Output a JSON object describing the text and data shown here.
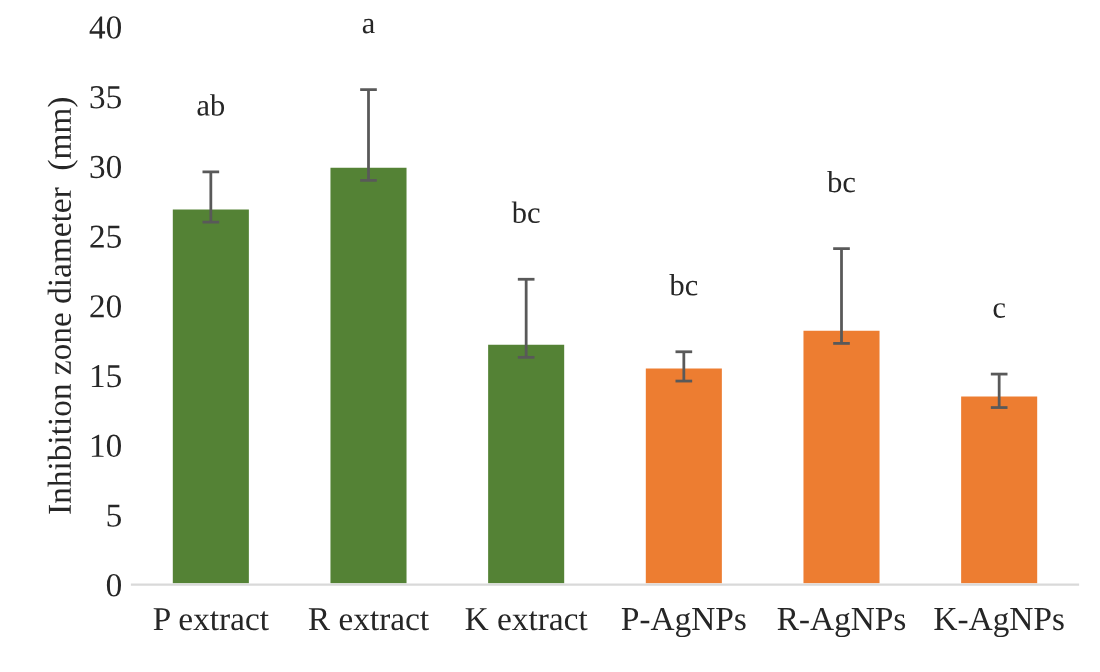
{
  "chart_data": {
    "type": "bar",
    "ylabel": "Inhibition zone diameter  (mm)",
    "categories": [
      "P extract",
      "R extract",
      "K extract",
      "P-AgNPs",
      "R-AgNPs",
      "K-AgNPs"
    ],
    "values": [
      27,
      30,
      17.3,
      15.6,
      18.3,
      13.6
    ],
    "colors": [
      "#548235",
      "#548235",
      "#548235",
      "#ed7d31",
      "#ed7d31",
      "#ed7d31"
    ],
    "errors": [
      [
        26,
        29.6
      ],
      [
        29,
        35.5
      ],
      [
        16.3,
        21.9
      ],
      [
        14.6,
        16.7
      ],
      [
        17.3,
        24.1
      ],
      [
        12.7,
        15.1
      ]
    ],
    "annotations": [
      "ab",
      "a",
      "bc",
      "bc",
      "bc",
      "c"
    ],
    "ylim": [
      0,
      40
    ],
    "yticks": [
      0,
      5,
      10,
      15,
      20,
      25,
      30,
      35,
      40
    ],
    "grid": false
  }
}
